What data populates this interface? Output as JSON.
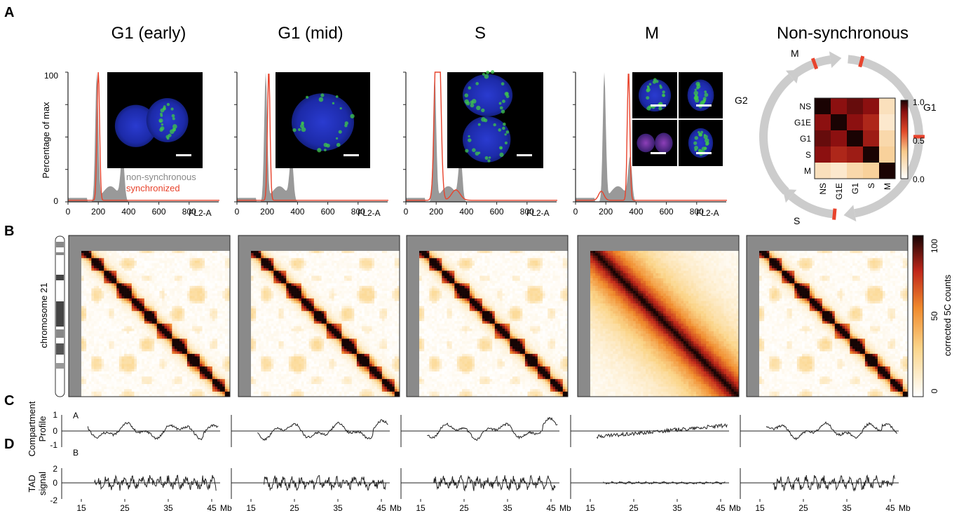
{
  "panel_letters": [
    "A",
    "B",
    "C",
    "D"
  ],
  "titles": [
    "G1 (early)",
    "G1 (mid)",
    "S",
    "M",
    "Non-synchronous"
  ],
  "histogram": {
    "ylabel": "Percentage of max",
    "xlabel": "FL2-A",
    "xticks": [
      "0",
      "200",
      "400",
      "600",
      "800"
    ],
    "yticks": [
      "0",
      "100"
    ],
    "legend": [
      "non-synchronous",
      "synchronized"
    ]
  },
  "cycle": {
    "phases": [
      "M",
      "G1",
      "S",
      "G2"
    ],
    "matrix_labels": [
      "NS",
      "G1E",
      "G1",
      "S",
      "M"
    ],
    "colorbar_ticks": [
      "1.0",
      "0.5",
      "0.0"
    ]
  },
  "heatmap": {
    "ylabel": "chromosome 21",
    "colorbar_label": "corrected 5C counts",
    "colorbar_ticks": [
      "100",
      "50",
      "0"
    ]
  },
  "compartment": {
    "ylabel": [
      "Compartment",
      "Profile"
    ],
    "yticks": [
      "1",
      "0",
      "-1"
    ],
    "labels": [
      "A",
      "B"
    ]
  },
  "tad": {
    "ylabel": [
      "TAD",
      "signal"
    ],
    "yticks": [
      "2",
      "0",
      "-2"
    ],
    "xticks": [
      "15",
      "25",
      "35",
      "45"
    ],
    "xunit": "Mb"
  },
  "colors": {
    "synchronized": "#e8432c",
    "non_synchronous": "#999999",
    "cycle_arrow": "#cccccc",
    "cycle_mark": "#e8432c"
  },
  "chart_data": [
    {
      "type": "heatmap",
      "title": "Non-synchronous",
      "categories": [
        "NS",
        "G1E",
        "G1",
        "S",
        "M"
      ],
      "values": [
        [
          1.0,
          0.85,
          0.9,
          0.85,
          0.2
        ],
        [
          0.85,
          1.0,
          0.85,
          0.75,
          0.15
        ],
        [
          0.9,
          0.85,
          1.0,
          0.8,
          0.25
        ],
        [
          0.85,
          0.75,
          0.8,
          1.0,
          0.3
        ],
        [
          0.2,
          0.15,
          0.25,
          0.3,
          1.0
        ]
      ],
      "zlim": [
        0.0,
        1.0
      ]
    }
  ]
}
